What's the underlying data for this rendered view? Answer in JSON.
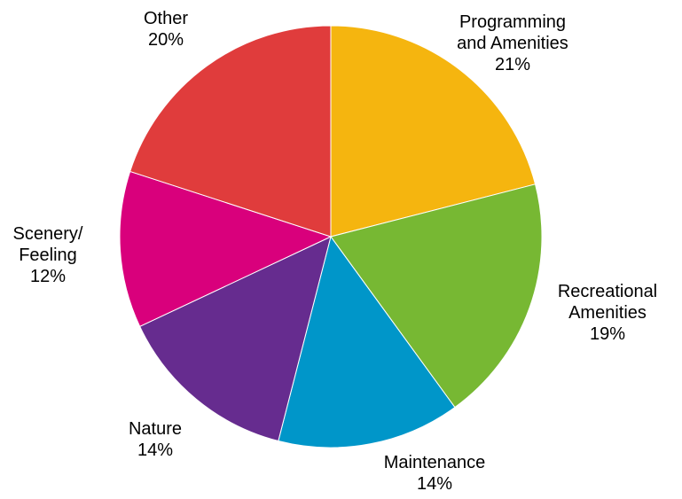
{
  "chart_data": {
    "type": "pie",
    "slices": [
      {
        "label_lines": [
          "Programming",
          "and Amenities"
        ],
        "pct_label": "21%",
        "value": 21,
        "color": "#F5B50F"
      },
      {
        "label_lines": [
          "Recreational",
          "Amenities"
        ],
        "pct_label": "19%",
        "value": 19,
        "color": "#77B833"
      },
      {
        "label_lines": [
          "Maintenance"
        ],
        "pct_label": "14%",
        "value": 14,
        "color": "#0096C9"
      },
      {
        "label_lines": [
          "Nature"
        ],
        "pct_label": "14%",
        "value": 14,
        "color": "#662C8F"
      },
      {
        "label_lines": [
          "Scenery/",
          "Feeling"
        ],
        "pct_label": "12%",
        "value": 12,
        "color": "#D9007C"
      },
      {
        "label_lines": [
          "Other"
        ],
        "pct_label": "20%",
        "value": 20,
        "color": "#E03C3C"
      }
    ],
    "start": "12 o'clock",
    "direction": "clockwise",
    "legend": "none"
  }
}
